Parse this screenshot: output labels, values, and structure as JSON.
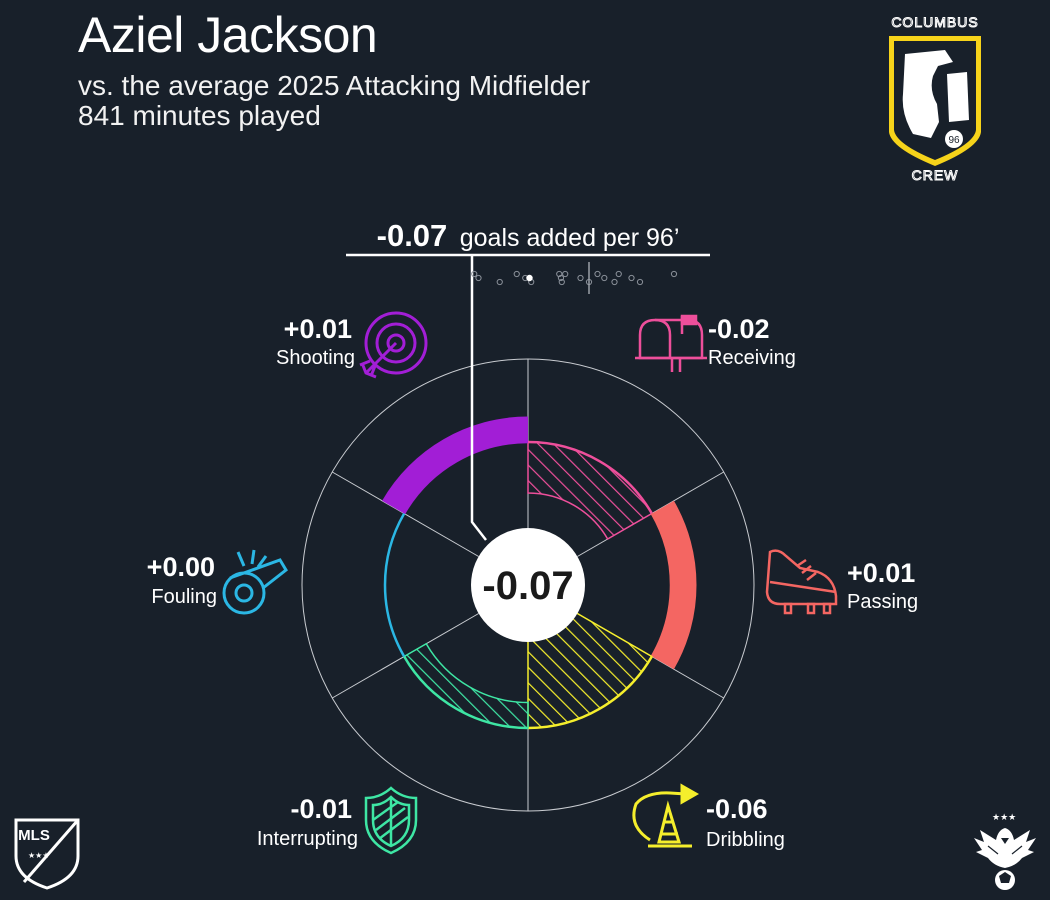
{
  "header": {
    "player": "Aziel Jackson",
    "comparison": "vs. the average 2025 Attacking Midfielder",
    "minutes": "841 minutes played"
  },
  "logos": {
    "team_top": "COLUMBUS",
    "team_bottom": "CREW",
    "team_number": "96",
    "league": "MLS"
  },
  "summary": {
    "value": "-0.07",
    "unit_text": "goals added per 96’",
    "center_value": "-0.07"
  },
  "chart_data": {
    "type": "polar-bar",
    "total": -0.07,
    "categories": [
      {
        "name": "Receiving",
        "label": "-0.02",
        "value": -0.02,
        "color": "#ee4f9b",
        "icon": "mailbox-icon",
        "style": "hatched"
      },
      {
        "name": "Passing",
        "label": "+0.01",
        "value": 0.01,
        "color": "#f46662",
        "icon": "cleat-icon",
        "style": "solid"
      },
      {
        "name": "Dribbling",
        "label": "-0.06",
        "value": -0.06,
        "color": "#f5ee2c",
        "icon": "cone-icon",
        "style": "hatched"
      },
      {
        "name": "Interrupting",
        "label": "-0.01",
        "value": -0.01,
        "color": "#3ee6a4",
        "icon": "shield-icon",
        "style": "hatched"
      },
      {
        "name": "Fouling",
        "label": "+0.00",
        "value": 0.0,
        "color": "#2bb7e4",
        "icon": "whistle-icon",
        "style": "solid"
      },
      {
        "name": "Shooting",
        "label": "+0.01",
        "value": 0.01,
        "color": "#a21ed6",
        "icon": "target-icon",
        "style": "solid"
      }
    ],
    "distribution": [
      -0.135,
      -0.13,
      -0.105,
      -0.085,
      -0.075,
      -0.068,
      -0.035,
      -0.033,
      -0.032,
      -0.028,
      -0.01,
      0.0,
      0.01,
      0.018,
      0.03,
      0.035,
      0.05,
      0.06,
      0.1
    ],
    "distribution_highlight": -0.07,
    "distribution_average": 0.0
  }
}
